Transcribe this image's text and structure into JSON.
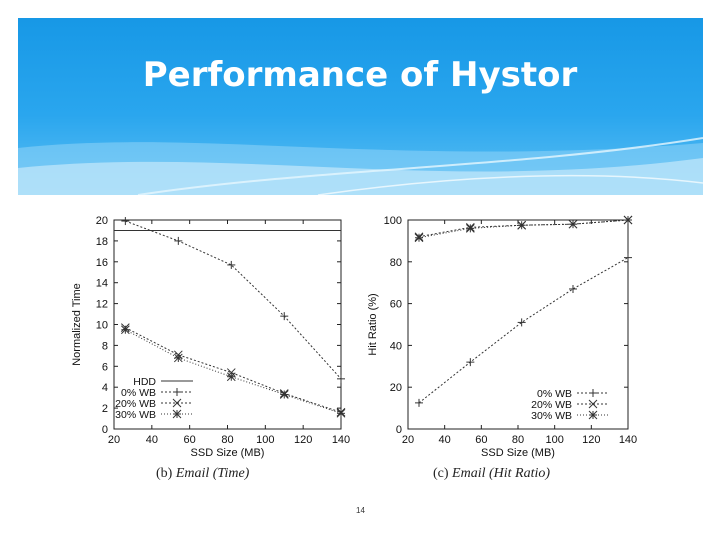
{
  "slide": {
    "title": "Performance of Hystor",
    "page_number": "14"
  },
  "captions": [
    {
      "prefix": "(b)",
      "italic": "Email (Time)"
    },
    {
      "prefix": "(c)",
      "italic": "Email (Hit Ratio)"
    }
  ],
  "colors": {
    "header": "#1a9ce8",
    "title": "#ffffff",
    "line": "#333333"
  },
  "chart_data": [
    {
      "type": "line",
      "xlabel": "SSD Size (MB)",
      "ylabel": "Normalized Time",
      "xlim": [
        20,
        140
      ],
      "ylim": [
        0,
        20
      ],
      "xticks": [
        20,
        40,
        60,
        80,
        100,
        120,
        140
      ],
      "yticks": [
        0,
        2,
        4,
        6,
        8,
        10,
        12,
        14,
        16,
        18,
        20
      ],
      "legend_position": "bottom-left",
      "series": [
        {
          "name": "HDD",
          "marker": "none",
          "dash": "",
          "x": [
            20,
            140
          ],
          "y": [
            19,
            19
          ]
        },
        {
          "name": "0% WB",
          "marker": "plus",
          "dash": "2,2",
          "x": [
            26,
            54,
            82,
            110,
            140
          ],
          "y": [
            19.9,
            18,
            15.7,
            10.8,
            4.8
          ]
        },
        {
          "name": "20% WB",
          "marker": "cross",
          "dash": "2,2",
          "x": [
            26,
            54,
            82,
            110,
            140
          ],
          "y": [
            9.7,
            7.1,
            5.4,
            3.4,
            1.6
          ]
        },
        {
          "name": "30% WB",
          "marker": "star",
          "dash": "1,2",
          "x": [
            26,
            54,
            82,
            110,
            140
          ],
          "y": [
            9.5,
            6.8,
            5.0,
            3.3,
            1.5
          ]
        }
      ]
    },
    {
      "type": "line",
      "xlabel": "SSD Size (MB)",
      "ylabel": "Hit Ratio (%)",
      "xlim": [
        20,
        140
      ],
      "ylim": [
        0,
        100
      ],
      "xticks": [
        20,
        40,
        60,
        80,
        100,
        120,
        140
      ],
      "yticks": [
        0,
        20,
        40,
        60,
        80,
        100
      ],
      "legend_position": "bottom-right",
      "series": [
        {
          "name": "0% WB",
          "marker": "plus",
          "dash": "2,2",
          "x": [
            26,
            54,
            82,
            110,
            140
          ],
          "y": [
            12.5,
            32,
            51,
            67,
            82
          ]
        },
        {
          "name": "20% WB",
          "marker": "cross",
          "dash": "2,2",
          "x": [
            26,
            54,
            82,
            110,
            140
          ],
          "y": [
            92,
            96.5,
            97.5,
            98,
            100
          ]
        },
        {
          "name": "30% WB",
          "marker": "star",
          "dash": "1,2",
          "x": [
            26,
            54,
            82,
            110,
            140
          ],
          "y": [
            91.5,
            96,
            97.5,
            98,
            100
          ]
        }
      ]
    }
  ]
}
